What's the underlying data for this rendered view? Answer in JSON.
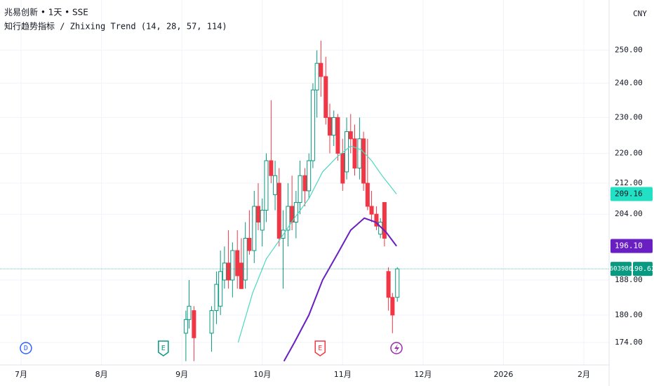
{
  "chart_data": {
    "type": "candlestick",
    "title": "兆易创新 • 1天 • SSE",
    "subtitle": "知行趋势指标 / Zhixing Trend (14, 28, 57, 114)",
    "currency": "CNY",
    "log_scale": true,
    "grid": true,
    "up_color": "#089981",
    "down_color": "#f23645",
    "x": [
      9.05,
      9.09,
      9.15,
      9.37,
      9.43,
      9.48,
      9.53,
      9.58,
      9.63,
      9.69,
      9.74,
      9.79,
      9.84,
      9.9,
      9.95,
      10.0,
      10.05,
      10.11,
      10.16,
      10.21,
      10.26,
      10.32,
      10.37,
      10.42,
      10.47,
      10.53,
      10.58,
      10.63,
      10.68,
      10.73,
      10.79,
      10.84,
      10.89,
      10.94,
      11.0,
      11.05,
      11.1,
      11.15,
      11.21,
      11.26,
      11.31,
      11.36,
      11.42,
      11.47,
      11.52,
      11.57,
      11.62,
      11.68
    ],
    "open": [
      176,
      179,
      181,
      176,
      181,
      182,
      188,
      192,
      188,
      195,
      192,
      188,
      198,
      195,
      206,
      200,
      205,
      218,
      209,
      212,
      198,
      200,
      206,
      202,
      207,
      214,
      210,
      218,
      238,
      246,
      242,
      230,
      225,
      230,
      220,
      215,
      226,
      224,
      216,
      224,
      212,
      206,
      204,
      199,
      207,
      190,
      184,
      184
    ],
    "high": [
      181,
      188,
      182,
      182,
      190,
      195,
      196,
      200,
      197,
      200,
      198,
      202,
      205,
      210,
      212,
      208,
      220,
      235,
      218,
      216,
      205,
      212,
      214,
      210,
      218,
      216,
      220,
      240,
      250,
      253,
      248,
      234,
      232,
      231,
      224,
      230,
      231,
      228,
      230,
      226,
      224,
      210,
      206,
      203,
      207,
      191,
      185,
      191
    ],
    "low": [
      170,
      177,
      170,
      172,
      178,
      180,
      186,
      186,
      184,
      186,
      186,
      186,
      194,
      192,
      200,
      196,
      202,
      212,
      205,
      196,
      186,
      196,
      200,
      198,
      204,
      206,
      208,
      216,
      230,
      236,
      228,
      220,
      222,
      218,
      210,
      213,
      220,
      214,
      213,
      210,
      205,
      202,
      200,
      198,
      196,
      181,
      176,
      183
    ],
    "close": [
      179,
      182,
      175,
      181,
      187,
      190,
      192,
      188,
      195,
      189,
      186,
      198,
      195,
      206,
      202,
      205,
      218,
      214,
      214,
      198,
      200,
      206,
      202,
      207,
      214,
      210,
      218,
      238,
      246,
      242,
      230,
      225,
      230,
      220,
      212,
      226,
      224,
      216,
      224,
      212,
      206,
      204,
      201,
      202,
      198,
      184,
      180,
      190.62
    ],
    "lines": [
      {
        "color": "#4dd8c0",
        "x": [
          9.7,
          9.88,
          10.05,
          10.23,
          10.4,
          10.58,
          10.75,
          10.93,
          11.1,
          11.23,
          11.36,
          11.49,
          11.67
        ],
        "values": [
          174,
          185,
          193,
          198,
          203,
          208,
          215,
          219,
          222,
          221,
          218,
          214,
          209.16
        ]
      },
      {
        "color": "#6a1fc2",
        "x": [
          10.27,
          10.4,
          10.58,
          10.75,
          10.93,
          11.1,
          11.27,
          11.41,
          11.54,
          11.67
        ],
        "values": [
          170,
          174,
          180,
          188,
          194,
          200,
          203,
          202,
          199.5,
          196.1
        ]
      }
    ],
    "price_tags": [
      {
        "value": 209.16,
        "label": "209.16",
        "color": "#22e0c4",
        "text_color": "#131722"
      },
      {
        "value": 196.1,
        "label": "196.10",
        "color": "#6a1fc2",
        "text_color": "#ffffff"
      },
      {
        "value": 190.62,
        "label": "190.62",
        "color": "#089981",
        "text_color": "#ffffff"
      }
    ],
    "symbol_tag": "603986",
    "ylim": [
      169.2,
      266.1
    ],
    "yticks": [
      {
        "value": 174,
        "label": "174.00"
      },
      {
        "value": 180,
        "label": "180.00"
      },
      {
        "value": 188,
        "label": "188.00"
      },
      {
        "value": 204,
        "label": "204.00"
      },
      {
        "value": 212,
        "label": "212.00"
      },
      {
        "value": 220,
        "label": "220.00"
      },
      {
        "value": 230,
        "label": "230.00"
      },
      {
        "value": 240,
        "label": "240.00"
      },
      {
        "value": 250,
        "label": "250.00"
      }
    ],
    "xlim": [
      6.738,
      14.314
    ],
    "xticks": [
      {
        "value": 7,
        "label": "7月"
      },
      {
        "value": 8,
        "label": "8月"
      },
      {
        "value": 9,
        "label": "9月"
      },
      {
        "value": 10,
        "label": "10月"
      },
      {
        "value": 11,
        "label": "11月"
      },
      {
        "value": 12,
        "label": "12月"
      },
      {
        "value": 13,
        "label": "2026"
      },
      {
        "value": 14,
        "label": "2月"
      }
    ],
    "events": [
      {
        "x": 7.06,
        "label": "D",
        "color": "#2962ff"
      },
      {
        "x": 8.77,
        "label": "E",
        "color": "#089981"
      },
      {
        "x": 10.72,
        "label": "E",
        "color": "#f23645"
      }
    ]
  }
}
